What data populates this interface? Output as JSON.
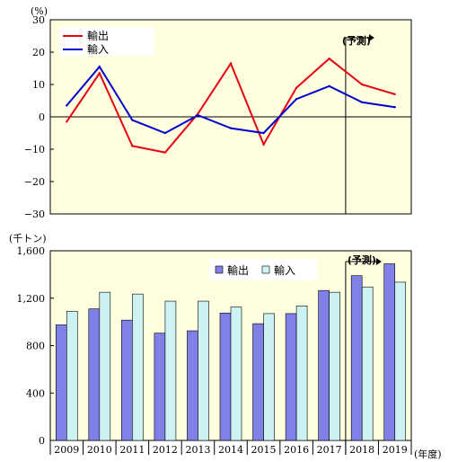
{
  "chart_data": [
    {
      "type": "line",
      "unit": "(%)",
      "ylim": [
        -30,
        30
      ],
      "yticks": [
        -30,
        -20,
        -10,
        0,
        10,
        20,
        30
      ],
      "x": [
        "2009",
        "2010",
        "2011",
        "2012",
        "2013",
        "2014",
        "2015",
        "2016",
        "2017",
        "2018",
        "2019"
      ],
      "series": [
        {
          "name": "輸出",
          "color": "#e60012",
          "values": [
            -1.5,
            13.5,
            -9,
            -11,
            1,
            16.5,
            -8.5,
            9,
            18,
            10,
            7
          ]
        },
        {
          "name": "輸入",
          "color": "#0000cc",
          "values": [
            3.5,
            15.5,
            -1,
            -5,
            0.5,
            -3.5,
            -5,
            5.5,
            9.5,
            4.5,
            3
          ]
        }
      ],
      "forecast_label": "(予測)",
      "legend": "top-left",
      "grid": false
    },
    {
      "type": "bar",
      "unit": "(千トン)",
      "ylim": [
        0,
        1600
      ],
      "yticks": [
        0,
        400,
        800,
        1200,
        1600
      ],
      "ytick_labels": [
        "0",
        "400",
        "800",
        "1,200",
        "1,600"
      ],
      "categories": [
        "2009",
        "2010",
        "2011",
        "2012",
        "2013",
        "2014",
        "2015",
        "2016",
        "2017",
        "2018",
        "2019"
      ],
      "xlabel_suffix": "(年度)",
      "series": [
        {
          "name": "輸出",
          "color": "#8080e6",
          "values": [
            975,
            1110,
            1015,
            905,
            925,
            1075,
            985,
            1070,
            1265,
            1390,
            1490
          ]
        },
        {
          "name": "輸入",
          "color": "#ccf2f2",
          "values": [
            1090,
            1250,
            1235,
            1175,
            1175,
            1125,
            1070,
            1135,
            1250,
            1295,
            1335
          ]
        }
      ],
      "forecast_label": "(予測)",
      "legend": "top-center",
      "grid": false
    }
  ]
}
